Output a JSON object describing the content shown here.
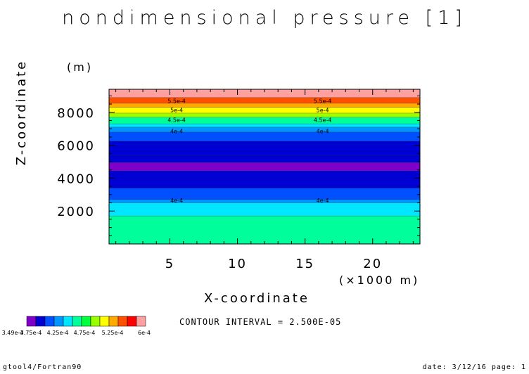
{
  "chart_data": {
    "type": "contour",
    "title": "nondimensional pressure [1]",
    "xlabel": "X-coordinate",
    "xunit": "(×1000 m)",
    "ylabel": "Z-coordinate",
    "yunit": "(m)",
    "xlim": [
      0.5,
      23.5
    ],
    "ylim": [
      0,
      9400
    ],
    "x_ticks": [
      5,
      10,
      15,
      20
    ],
    "y_ticks": [
      2000,
      4000,
      6000,
      8000
    ],
    "colors": [
      "#7f00c8",
      "#0000d2",
      "#0050ff",
      "#0096ff",
      "#00e6ff",
      "#00ff9a",
      "#00ff3c",
      "#9bff00",
      "#ffff00",
      "#ffaa00",
      "#ff5000",
      "#ff0000",
      "#ffa0a0"
    ],
    "bands": [
      {
        "z": [
          0,
          1700
        ],
        "color": 5
      },
      {
        "z": [
          1700,
          2500
        ],
        "color": 4
      },
      {
        "z": [
          2500,
          2700
        ],
        "color": 3
      },
      {
        "z": [
          2700,
          3400
        ],
        "color": 2
      },
      {
        "z": [
          3400,
          4450
        ],
        "color": 1
      },
      {
        "z": [
          4450,
          4950
        ],
        "color": 0
      },
      {
        "z": [
          4950,
          5400
        ],
        "color": 1
      },
      {
        "z": [
          5400,
          6250
        ],
        "color": 1
      },
      {
        "z": [
          6250,
          6800
        ],
        "color": 2
      },
      {
        "z": [
          6800,
          7100
        ],
        "color": 3
      },
      {
        "z": [
          7100,
          7300
        ],
        "color": 4
      },
      {
        "z": [
          7300,
          7700
        ],
        "color": 5
      },
      {
        "z": [
          7700,
          7950
        ],
        "color": 7
      },
      {
        "z": [
          7950,
          8300
        ],
        "color": 8
      },
      {
        "z": [
          8300,
          8550
        ],
        "color": 9
      },
      {
        "z": [
          8550,
          8900
        ],
        "color": 10
      },
      {
        "z": [
          8900,
          9400
        ],
        "color": 12
      }
    ],
    "contour_labels": [
      {
        "text": "5.5e-4",
        "z": 8700
      },
      {
        "text": "5e-4",
        "z": 8150
      },
      {
        "text": "4.5e-4",
        "z": 7550
      },
      {
        "text": "4e-4",
        "z": 6850
      },
      {
        "text": "4e-4",
        "z": 2650
      }
    ],
    "label_x": [
      5.5,
      16.3
    ],
    "colorbar_labels": [
      "3.49e-4",
      "3.75e-4",
      "4.25e-4",
      "4.75e-4",
      "5.25e-4",
      "6e-4"
    ]
  },
  "contour_interval": "CONTOUR INTERVAL = 2.500E-05",
  "footer": {
    "left": "gtool4/Fortran90",
    "right": "date: 3/12/16 page: 1"
  }
}
